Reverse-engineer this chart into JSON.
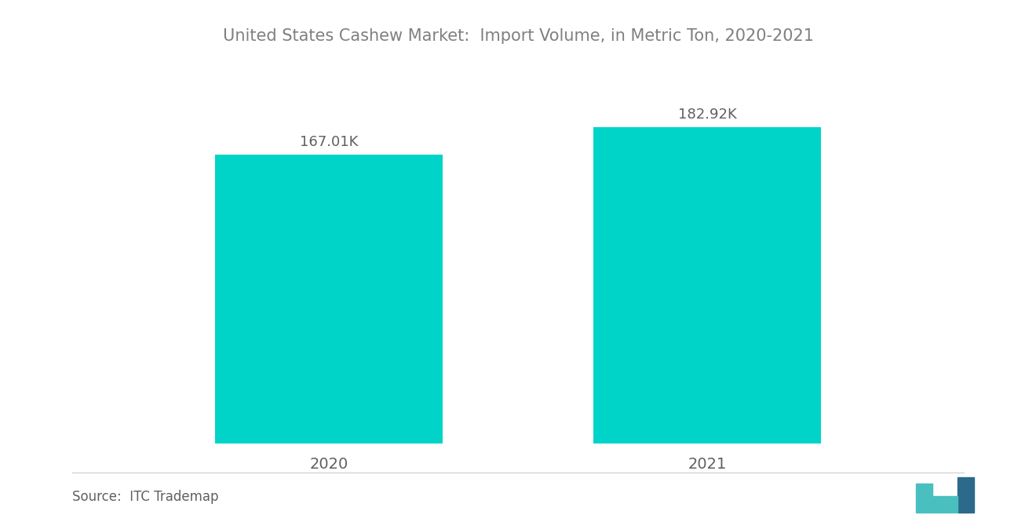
{
  "title": "United States Cashew Market:  Import Volume, in Metric Ton, 2020-2021",
  "categories": [
    "2020",
    "2021"
  ],
  "values": [
    167010,
    182920
  ],
  "labels": [
    "167.01K",
    "182.92K"
  ],
  "bar_color": "#00D4C8",
  "background_color": "#ffffff",
  "title_color": "#808080",
  "label_color": "#606060",
  "tick_color": "#606060",
  "source_text": "Source:  ITC Trademap",
  "title_fontsize": 15,
  "label_fontsize": 13,
  "tick_fontsize": 14,
  "source_fontsize": 12,
  "ylim": [
    0,
    220000
  ],
  "bar_width": 0.6
}
